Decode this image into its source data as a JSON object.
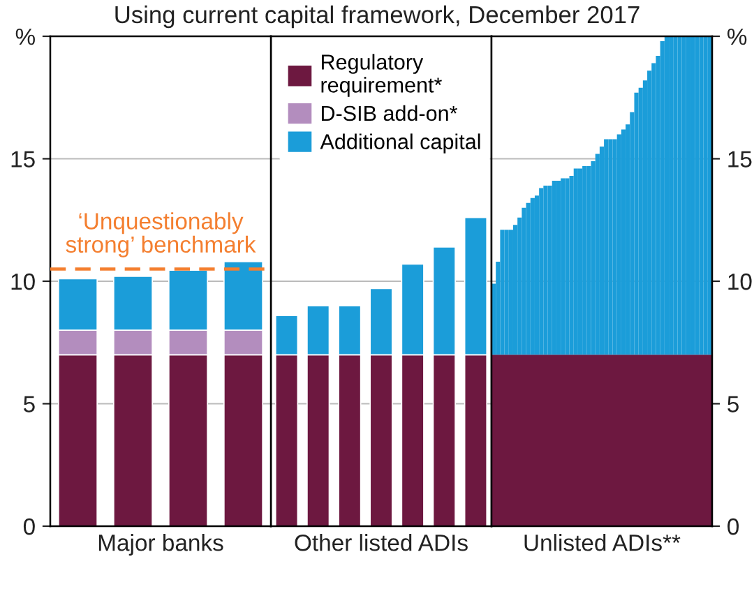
{
  "chart_data": [
    {
      "type": "bar",
      "stacked": true,
      "subtitle": "Using current capital framework, December 2017",
      "xlabel": "Major banks",
      "categories": [
        null,
        null,
        null,
        null
      ],
      "series": [
        {
          "name": "Regulatory\nrequirement*",
          "color": "#6d1840",
          "values": [
            7,
            7,
            7,
            7
          ]
        },
        {
          "name": "D-SIB add-on*",
          "color": "#b38dbe",
          "values": [
            1,
            1,
            1,
            1
          ]
        },
        {
          "name": "Additional capital",
          "color": "#1b9dd9",
          "values": [
            2.1,
            2.2,
            2.45,
            2.8
          ]
        }
      ],
      "ylim": [
        0,
        20
      ],
      "yticks": [
        0,
        5,
        10,
        15,
        {
          "value": 20,
          "label": "%"
        }
      ],
      "grid": "y",
      "tick_labels": "y",
      "legend": "top right",
      "ref_lines": [
        {
          "axis": "y",
          "value": 10.5,
          "label": "‘Unquestionably\nstrong’ benchmark",
          "color": "#f47f30",
          "line_style": "dashed"
        }
      ]
    },
    {
      "type": "bar",
      "stacked": true,
      "xlabel": "Other listed ADIs",
      "categories": [
        null,
        null,
        null,
        null,
        null,
        null,
        null
      ],
      "series": [
        {
          "color": "#6d1840",
          "values": [
            7,
            7,
            7,
            7,
            7,
            7,
            7
          ]
        },
        {
          "color": "#1b9dd9",
          "values": [
            1.6,
            2.0,
            2.0,
            2.7,
            3.7,
            4.4,
            5.6
          ]
        }
      ],
      "ylim": [
        0,
        20
      ],
      "yticks": [
        0,
        5,
        10,
        15
      ],
      "grid": "y",
      "tick_labels": false
    },
    {
      "type": "bar",
      "xlabel": "Unlisted ADIs**",
      "categories": [
        null,
        null,
        null,
        null,
        null,
        null,
        null,
        null,
        null,
        null,
        null,
        null,
        null,
        null,
        null,
        null,
        null,
        null,
        null,
        null,
        null,
        null,
        null,
        null,
        null,
        null,
        null,
        null,
        null,
        null,
        null,
        null,
        null,
        null,
        null,
        null,
        null,
        null,
        null,
        null,
        null,
        null,
        null,
        null,
        null,
        null,
        null,
        null,
        null,
        null,
        null
      ],
      "bands": [
        {
          "axis": "y",
          "from": 0,
          "to": 7,
          "color": "#6d1840"
        }
      ],
      "series": [
        {
          "color": "#1b9dd9",
          "base": [
            7,
            7,
            7,
            7,
            7,
            7,
            7,
            7,
            7,
            7,
            7,
            7,
            7,
            7,
            7,
            7,
            7,
            7,
            7,
            7,
            7,
            7,
            7,
            7,
            7,
            7,
            7,
            7,
            7,
            7,
            7,
            7,
            7,
            7,
            7,
            7,
            7,
            7,
            7,
            7,
            7,
            7,
            7,
            7,
            7,
            7,
            7,
            7,
            7,
            7,
            7
          ],
          "values": [
            2.9,
            3.8,
            5.1,
            5.1,
            5.1,
            5.3,
            5.6,
            6.0,
            6.2,
            6.4,
            6.5,
            6.8,
            6.9,
            6.9,
            7.1,
            7.1,
            7.2,
            7.2,
            7.3,
            7.6,
            7.6,
            7.7,
            7.7,
            7.9,
            8.2,
            8.5,
            8.8,
            8.8,
            8.8,
            9.0,
            9.2,
            9.4,
            9.9,
            10.7,
            10.9,
            11.2,
            11.6,
            11.9,
            12.2,
            12.8,
            13,
            13,
            13,
            13,
            13,
            13,
            13,
            13,
            13,
            13,
            13
          ]
        }
      ],
      "ylim": [
        0,
        20
      ],
      "yticks": [
        0,
        5,
        10,
        15,
        {
          "value": 20,
          "label": "%"
        }
      ],
      "grid": "y",
      "tick_labels": "y"
    }
  ]
}
